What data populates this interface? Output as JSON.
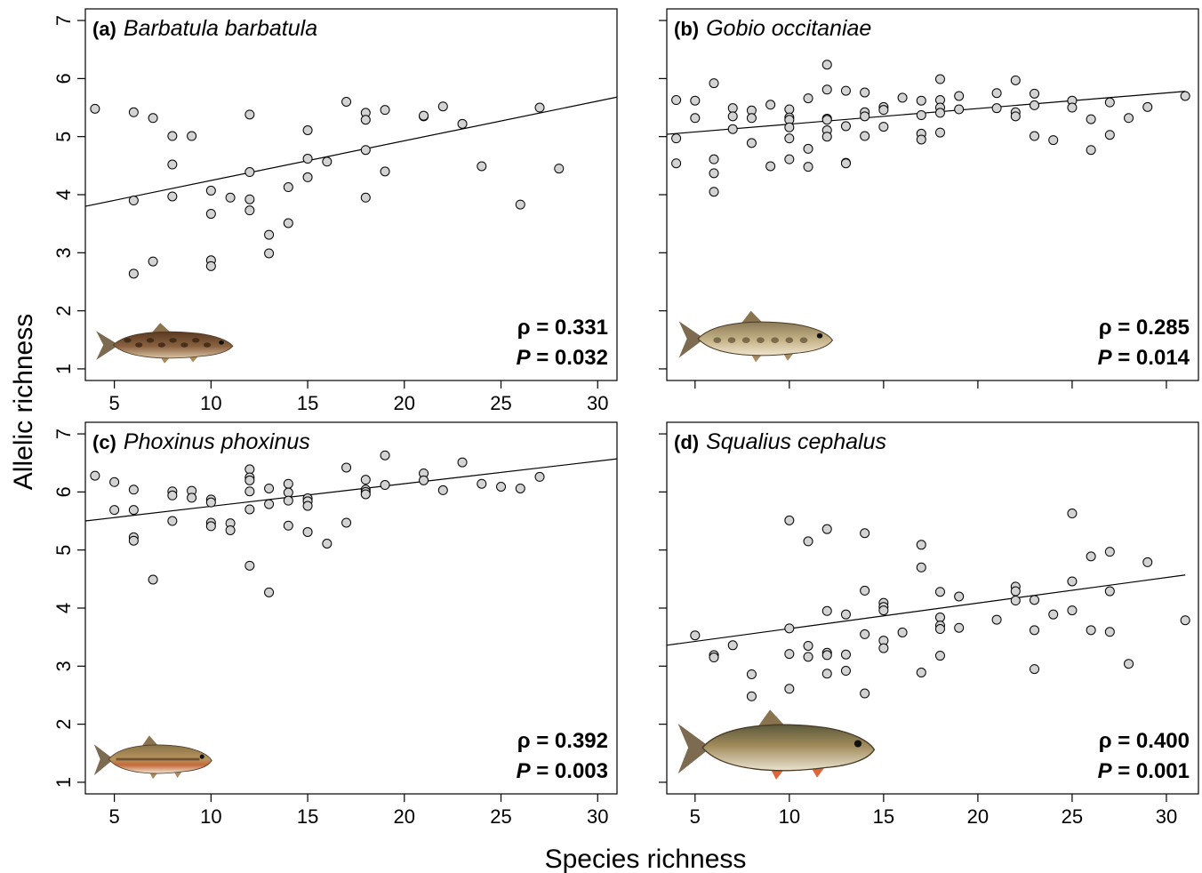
{
  "figure": {
    "xlabel": "Species richness",
    "ylabel": "Allelic richness"
  },
  "chart_data": [
    {
      "type": "scatter",
      "tag": "(a)",
      "species": "Barbatula barbatula",
      "rho_text": "ρ = 0.331",
      "p_label": "P",
      "p_value": " = 0.032",
      "xlim": [
        3.5,
        31
      ],
      "ylim": [
        0.8,
        7.2
      ],
      "xticks": [
        5,
        10,
        15,
        20,
        25,
        30
      ],
      "yticks": [
        1,
        2,
        3,
        4,
        5,
        6,
        7
      ],
      "trend": [
        [
          3.5,
          3.8
        ],
        [
          31,
          5.68
        ]
      ],
      "points": [
        [
          4,
          5.48
        ],
        [
          6,
          5.42
        ],
        [
          6,
          3.9
        ],
        [
          6,
          2.64
        ],
        [
          7,
          5.32
        ],
        [
          7,
          2.85
        ],
        [
          8,
          5.01
        ],
        [
          8,
          4.52
        ],
        [
          8,
          3.97
        ],
        [
          9,
          5.01
        ],
        [
          10,
          4.07
        ],
        [
          10,
          3.67
        ],
        [
          10,
          2.87
        ],
        [
          10,
          2.77
        ],
        [
          11,
          3.95
        ],
        [
          12,
          5.38
        ],
        [
          12,
          4.39
        ],
        [
          12,
          3.92
        ],
        [
          12,
          3.73
        ],
        [
          13,
          3.31
        ],
        [
          13,
          2.99
        ],
        [
          14,
          4.13
        ],
        [
          14,
          3.51
        ],
        [
          15,
          5.11
        ],
        [
          15,
          4.62
        ],
        [
          15,
          4.3
        ],
        [
          16,
          4.57
        ],
        [
          17,
          5.6
        ],
        [
          18,
          5.41
        ],
        [
          18,
          5.29
        ],
        [
          18,
          4.77
        ],
        [
          18,
          3.95
        ],
        [
          19,
          5.46
        ],
        [
          19,
          4.4
        ],
        [
          21,
          5.35
        ],
        [
          21,
          5.36
        ],
        [
          22,
          5.52
        ],
        [
          23,
          5.22
        ],
        [
          24,
          4.49
        ],
        [
          26,
          3.83
        ],
        [
          27,
          5.5
        ],
        [
          28,
          4.45
        ]
      ],
      "fish": "stone-loach"
    },
    {
      "type": "scatter",
      "tag": "(b)",
      "species": "Gobio occitaniae",
      "rho_text": "ρ = 0.285",
      "p_label": "P",
      "p_value": " = 0.014",
      "xlim": [
        3.5,
        31.7
      ],
      "ylim": [
        0.8,
        7.2
      ],
      "xticks": [
        5,
        10,
        15,
        20,
        25,
        30
      ],
      "yticks": [
        1,
        2,
        3,
        4,
        5,
        6,
        7
      ],
      "trend": [
        [
          3.5,
          5.04
        ],
        [
          31,
          5.78
        ]
      ],
      "points": [
        [
          4,
          5.63
        ],
        [
          4,
          4.97
        ],
        [
          4,
          4.54
        ],
        [
          5,
          5.62
        ],
        [
          5,
          5.32
        ],
        [
          6,
          5.92
        ],
        [
          6,
          4.61
        ],
        [
          6,
          4.37
        ],
        [
          6,
          4.05
        ],
        [
          7,
          5.49
        ],
        [
          7,
          5.35
        ],
        [
          7,
          5.13
        ],
        [
          8,
          5.45
        ],
        [
          8,
          5.32
        ],
        [
          8,
          4.89
        ],
        [
          9,
          5.55
        ],
        [
          9,
          4.49
        ],
        [
          10,
          5.47
        ],
        [
          10,
          5.33
        ],
        [
          10,
          5.29
        ],
        [
          10,
          5.16
        ],
        [
          10,
          4.97
        ],
        [
          10,
          4.61
        ],
        [
          11,
          5.66
        ],
        [
          11,
          4.79
        ],
        [
          11,
          4.48
        ],
        [
          12,
          6.24
        ],
        [
          12,
          5.81
        ],
        [
          12,
          5.31
        ],
        [
          12,
          5.29
        ],
        [
          12,
          5.11
        ],
        [
          12,
          5.0
        ],
        [
          13,
          5.79
        ],
        [
          13,
          5.18
        ],
        [
          13,
          4.55
        ],
        [
          13,
          4.54
        ],
        [
          14,
          5.76
        ],
        [
          14,
          5.42
        ],
        [
          14,
          5.35
        ],
        [
          14,
          5.01
        ],
        [
          15,
          5.51
        ],
        [
          15,
          5.46
        ],
        [
          15,
          5.17
        ],
        [
          16,
          5.67
        ],
        [
          17,
          5.62
        ],
        [
          17,
          5.37
        ],
        [
          17,
          5.05
        ],
        [
          17,
          4.95
        ],
        [
          18,
          5.99
        ],
        [
          18,
          5.63
        ],
        [
          18,
          5.5
        ],
        [
          18,
          5.41
        ],
        [
          18,
          5.07
        ],
        [
          19,
          5.7
        ],
        [
          19,
          5.47
        ],
        [
          21,
          5.75
        ],
        [
          21,
          5.49
        ],
        [
          22,
          5.97
        ],
        [
          22,
          5.42
        ],
        [
          22,
          5.35
        ],
        [
          23,
          5.74
        ],
        [
          23,
          5.54
        ],
        [
          23,
          5.01
        ],
        [
          24,
          4.94
        ],
        [
          25,
          5.62
        ],
        [
          25,
          5.5
        ],
        [
          26,
          5.3
        ],
        [
          26,
          4.77
        ],
        [
          27,
          5.59
        ],
        [
          27,
          5.03
        ],
        [
          28,
          5.32
        ],
        [
          29,
          5.51
        ],
        [
          31,
          5.7
        ]
      ],
      "fish": "gudgeon"
    },
    {
      "type": "scatter",
      "tag": "(c)",
      "species": "Phoxinus phoxinus",
      "rho_text": "ρ = 0.392",
      "p_label": "P",
      "p_value": " = 0.003",
      "xlim": [
        3.5,
        31
      ],
      "ylim": [
        0.8,
        7.2
      ],
      "xticks": [
        5,
        10,
        15,
        20,
        25,
        30
      ],
      "yticks": [
        1,
        2,
        3,
        4,
        5,
        6,
        7
      ],
      "trend": [
        [
          3.5,
          5.5
        ],
        [
          31,
          6.57
        ]
      ],
      "points": [
        [
          4,
          6.28
        ],
        [
          5,
          6.17
        ],
        [
          5,
          5.69
        ],
        [
          6,
          6.04
        ],
        [
          6,
          5.69
        ],
        [
          6,
          5.22
        ],
        [
          6,
          5.16
        ],
        [
          7,
          4.49
        ],
        [
          8,
          6.01
        ],
        [
          8,
          5.94
        ],
        [
          8,
          5.5
        ],
        [
          9,
          6.02
        ],
        [
          9,
          5.9
        ],
        [
          10,
          5.87
        ],
        [
          10,
          5.82
        ],
        [
          10,
          5.47
        ],
        [
          10,
          5.41
        ],
        [
          11,
          5.46
        ],
        [
          11,
          5.34
        ],
        [
          12,
          6.39
        ],
        [
          12,
          6.25
        ],
        [
          12,
          6.2
        ],
        [
          12,
          6.01
        ],
        [
          12,
          5.7
        ],
        [
          12,
          4.73
        ],
        [
          13,
          6.06
        ],
        [
          13,
          5.79
        ],
        [
          13,
          4.27
        ],
        [
          14,
          6.14
        ],
        [
          14,
          5.99
        ],
        [
          14,
          5.85
        ],
        [
          14,
          5.42
        ],
        [
          15,
          5.89
        ],
        [
          15,
          5.84
        ],
        [
          15,
          5.76
        ],
        [
          15,
          5.31
        ],
        [
          16,
          5.11
        ],
        [
          17,
          6.42
        ],
        [
          17,
          5.47
        ],
        [
          18,
          6.21
        ],
        [
          18,
          6.04
        ],
        [
          18,
          6.0
        ],
        [
          18,
          5.96
        ],
        [
          19,
          6.63
        ],
        [
          19,
          6.12
        ],
        [
          21,
          6.32
        ],
        [
          21,
          6.2
        ],
        [
          22,
          6.03
        ],
        [
          23,
          6.51
        ],
        [
          24,
          6.14
        ],
        [
          25,
          6.09
        ],
        [
          26,
          6.06
        ],
        [
          27,
          6.26
        ]
      ],
      "fish": "minnow"
    },
    {
      "type": "scatter",
      "tag": "(d)",
      "species": "Squalius cephalus",
      "rho_text": "ρ = 0.400",
      "p_label": "P",
      "p_value": " = 0.001",
      "xlim": [
        3.5,
        31.7
      ],
      "ylim": [
        0.8,
        7.2
      ],
      "xticks": [
        5,
        10,
        15,
        20,
        25,
        30
      ],
      "yticks": [
        1,
        2,
        3,
        4,
        5,
        6,
        7
      ],
      "trend": [
        [
          3.5,
          3.36
        ],
        [
          31,
          4.57
        ]
      ],
      "points": [
        [
          5,
          3.53
        ],
        [
          6,
          3.19
        ],
        [
          6,
          3.15
        ],
        [
          7,
          3.36
        ],
        [
          8,
          2.86
        ],
        [
          8,
          2.48
        ],
        [
          10,
          5.51
        ],
        [
          10,
          3.65
        ],
        [
          10,
          3.21
        ],
        [
          10,
          2.61
        ],
        [
          11,
          5.15
        ],
        [
          11,
          3.35
        ],
        [
          11,
          3.16
        ],
        [
          12,
          5.36
        ],
        [
          12,
          3.95
        ],
        [
          12,
          3.23
        ],
        [
          12,
          3.19
        ],
        [
          12,
          2.87
        ],
        [
          13,
          3.89
        ],
        [
          13,
          3.2
        ],
        [
          13,
          2.92
        ],
        [
          14,
          5.29
        ],
        [
          14,
          4.3
        ],
        [
          14,
          3.55
        ],
        [
          14,
          2.53
        ],
        [
          15,
          4.09
        ],
        [
          15,
          4.02
        ],
        [
          15,
          3.96
        ],
        [
          15,
          3.44
        ],
        [
          15,
          3.31
        ],
        [
          16,
          3.58
        ],
        [
          17,
          5.09
        ],
        [
          17,
          4.7
        ],
        [
          17,
          2.89
        ],
        [
          18,
          4.28
        ],
        [
          18,
          3.84
        ],
        [
          18,
          3.7
        ],
        [
          18,
          3.64
        ],
        [
          18,
          3.18
        ],
        [
          19,
          4.2
        ],
        [
          19,
          3.66
        ],
        [
          21,
          3.8
        ],
        [
          22,
          4.37
        ],
        [
          22,
          4.29
        ],
        [
          22,
          4.13
        ],
        [
          23,
          4.14
        ],
        [
          23,
          3.62
        ],
        [
          23,
          2.95
        ],
        [
          24,
          3.89
        ],
        [
          25,
          5.63
        ],
        [
          25,
          4.46
        ],
        [
          25,
          3.96
        ],
        [
          26,
          4.89
        ],
        [
          26,
          3.62
        ],
        [
          27,
          4.97
        ],
        [
          27,
          4.29
        ],
        [
          27,
          3.59
        ],
        [
          28,
          3.04
        ],
        [
          29,
          4.79
        ],
        [
          31,
          3.79
        ]
      ],
      "fish": "chub"
    }
  ],
  "colors": {
    "point_fill": "#d3d3d3",
    "point_stroke": "#000000",
    "line": "#000000"
  }
}
